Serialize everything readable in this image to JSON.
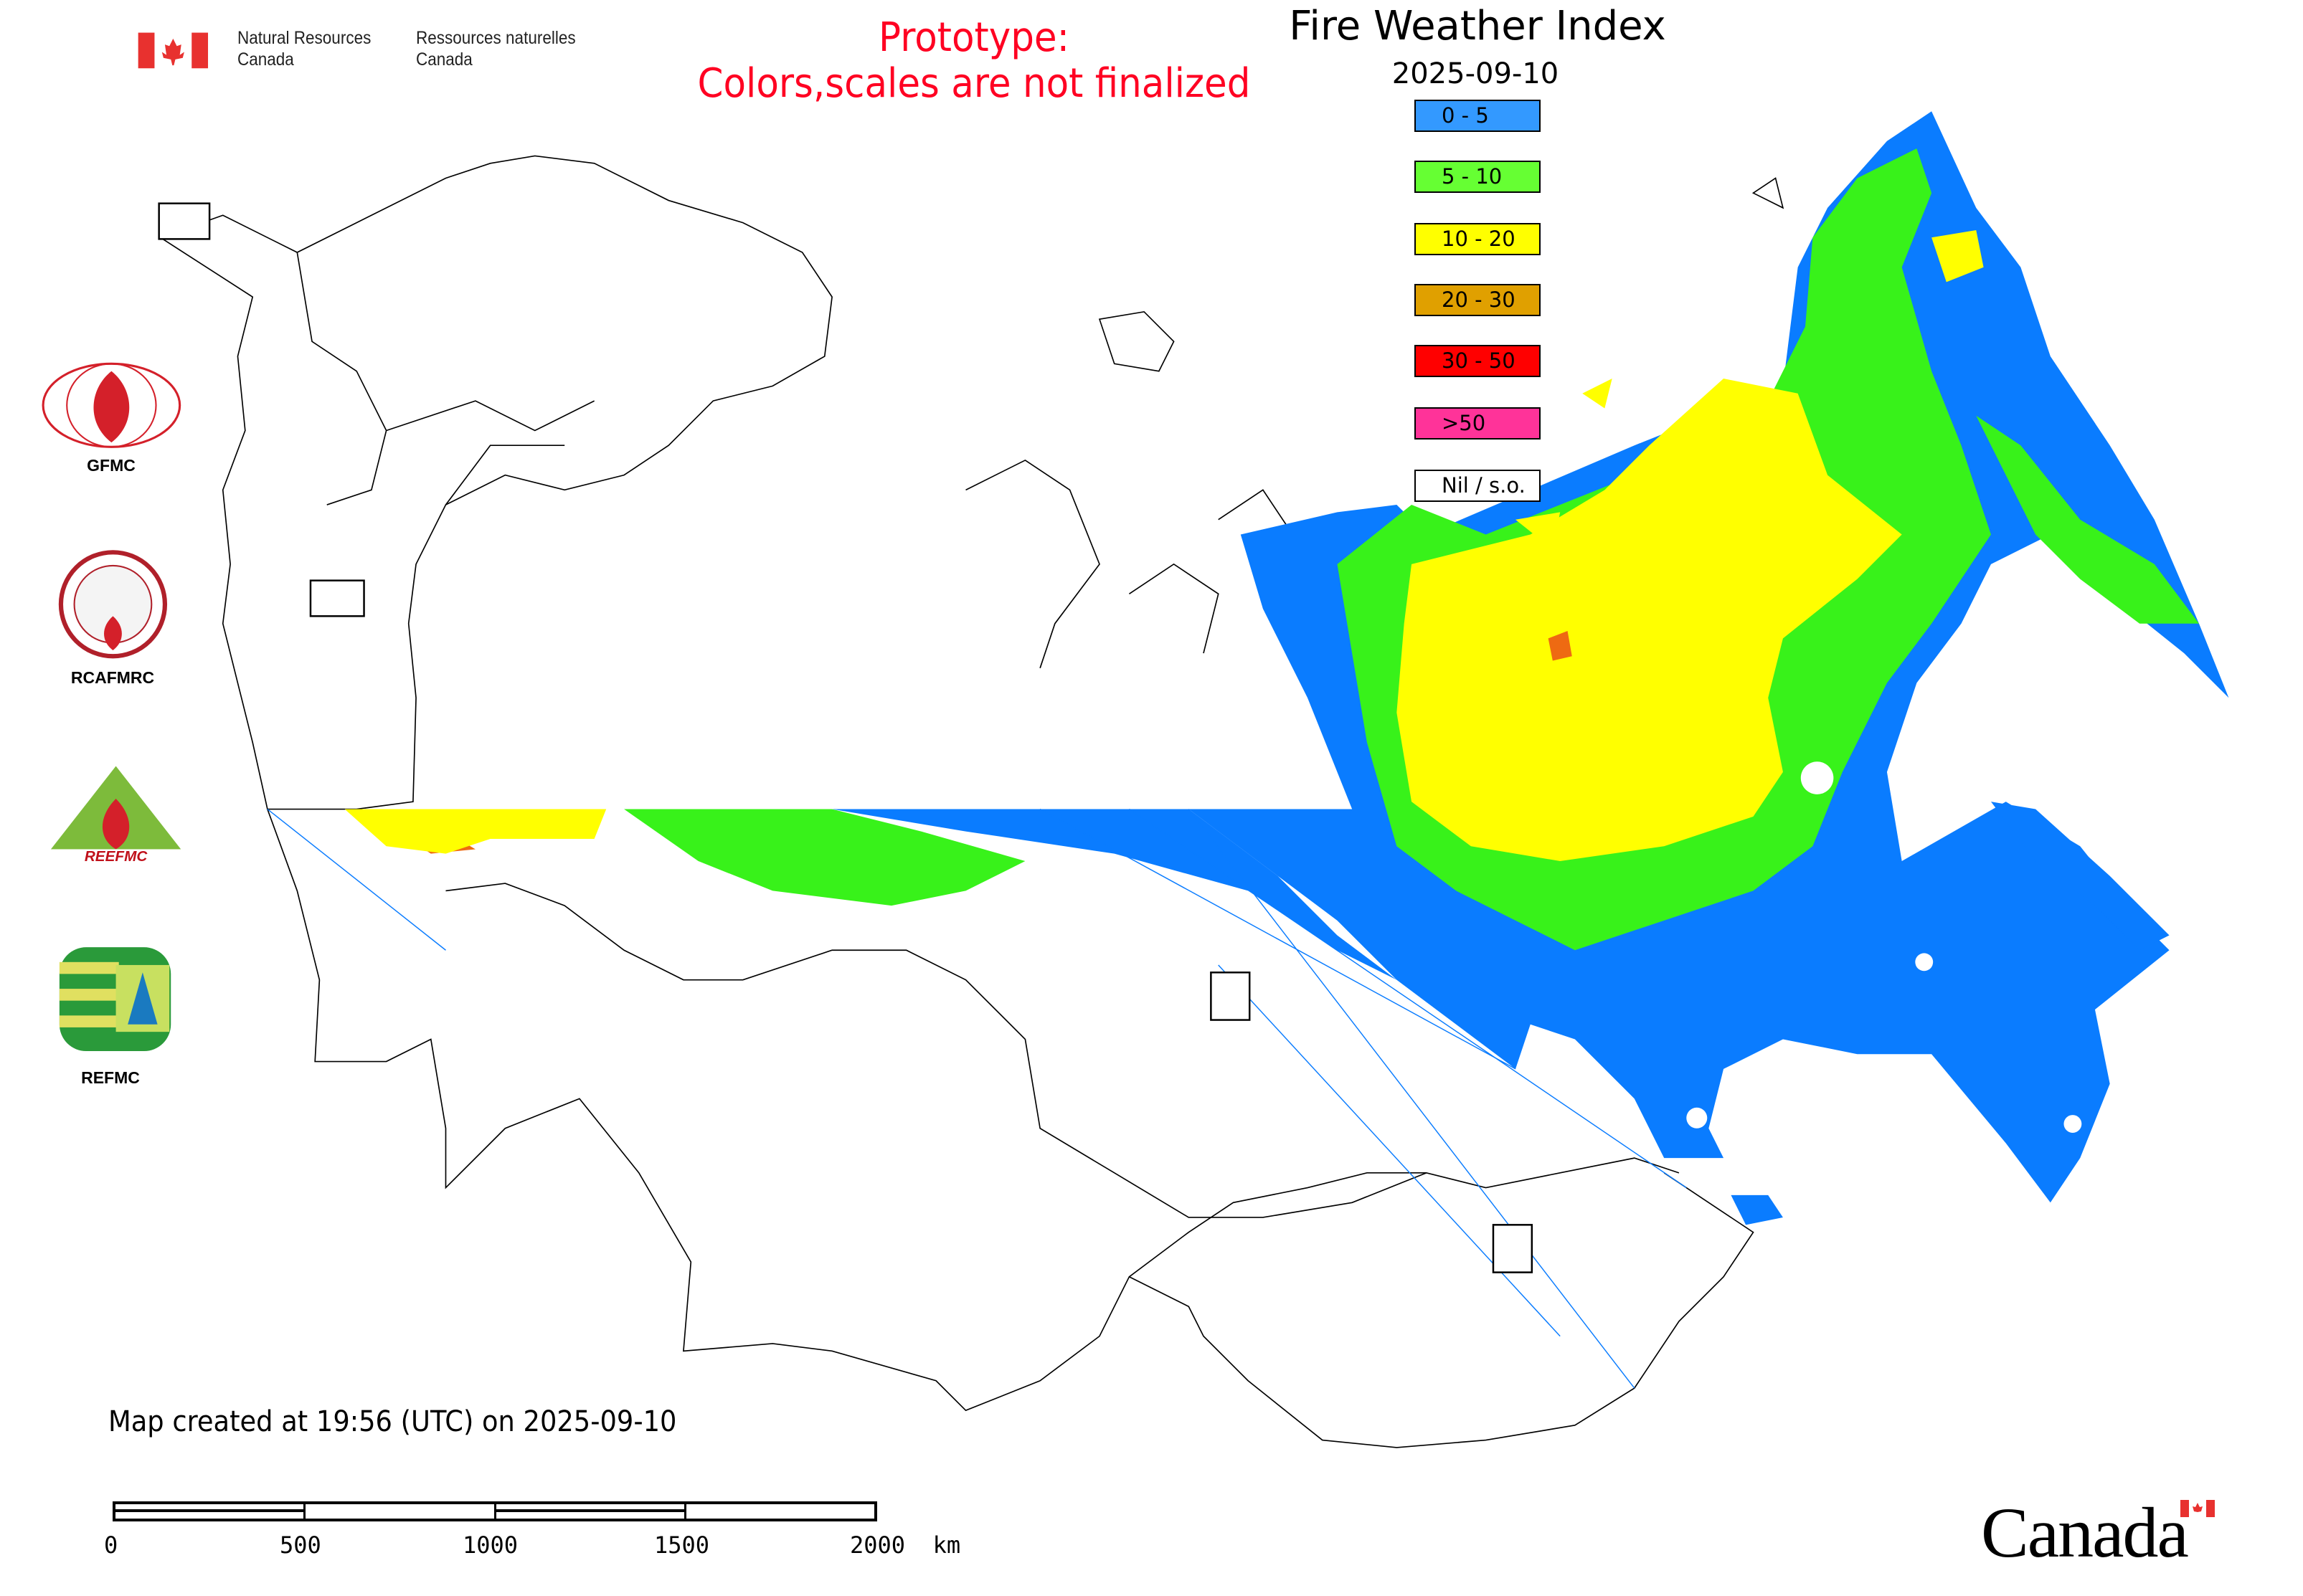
{
  "header": {
    "department_en_line1": "Natural Resources",
    "department_en_line2": "Canada",
    "department_fr_line1": "Ressources naturelles",
    "department_fr_line2": "Canada",
    "prototype_line1": "Prototype:",
    "prototype_line2": "Colors,scales are not finalized",
    "title": "Fire Weather Index",
    "date": "2025-09-10"
  },
  "legend": {
    "items": [
      {
        "label": "0 - 5",
        "color": "#3399ff"
      },
      {
        "label": "5 - 10",
        "color": "#66ff33"
      },
      {
        "label": "10 - 20",
        "color": "#ffff00"
      },
      {
        "label": "20 - 30",
        "color": "#e0a000"
      },
      {
        "label": "30 - 50",
        "color": "#ff0000"
      },
      {
        "label": ">50",
        "color": "#ff3399"
      },
      {
        "label": "Nil / s.o.",
        "color": "#ffffff"
      }
    ]
  },
  "logos": {
    "gfmc": "GFMC",
    "rcafmrc": "RCAFMRC",
    "reefmc": "REEFMC",
    "refmc": "REFMC"
  },
  "footer": {
    "created": "Map created at 19:56 (UTC) on 2025-09-10",
    "scale_labels": [
      "0",
      "500",
      "1000",
      "1500",
      "2000  km"
    ],
    "wordmark": "Canada"
  },
  "colors": {
    "accent_red": "#ff0022",
    "fwi_blue": "#0a7cff"
  }
}
